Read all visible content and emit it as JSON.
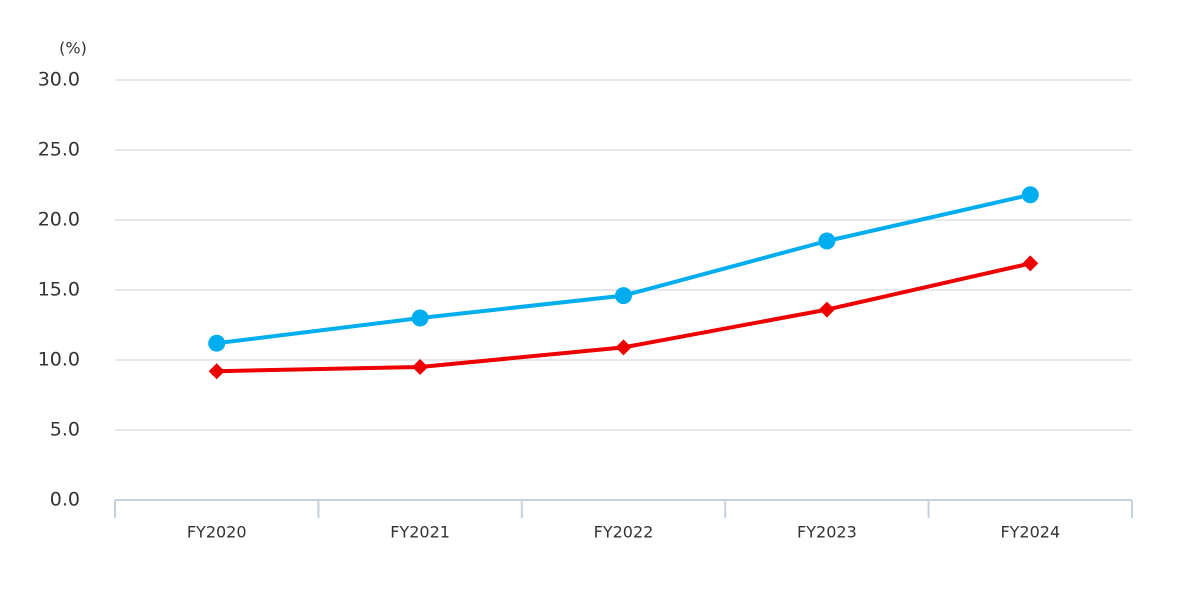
{
  "chart_data": {
    "type": "line",
    "y_label": "(%)",
    "categories": [
      "FY2020",
      "FY2021",
      "FY2022",
      "FY2023",
      "FY2024"
    ],
    "series": [
      {
        "color": "#00aeef",
        "marker": "circle",
        "values": [
          11.2,
          13.0,
          14.6,
          18.5,
          21.8
        ]
      },
      {
        "color": "#ee0000",
        "marker": "diamond",
        "values": [
          9.2,
          9.5,
          10.9,
          13.6,
          16.9
        ]
      }
    ],
    "ylim": [
      0,
      30
    ],
    "yticks": [
      {
        "value": 0,
        "label": "0.0"
      },
      {
        "value": 5,
        "label": "5.0"
      },
      {
        "value": 10,
        "label": "10.0"
      },
      {
        "value": 15,
        "label": "15.0"
      },
      {
        "value": 20,
        "label": "20.0"
      },
      {
        "value": 25,
        "label": "25.0"
      },
      {
        "value": 30,
        "label": "30.0"
      }
    ],
    "grid": true
  }
}
